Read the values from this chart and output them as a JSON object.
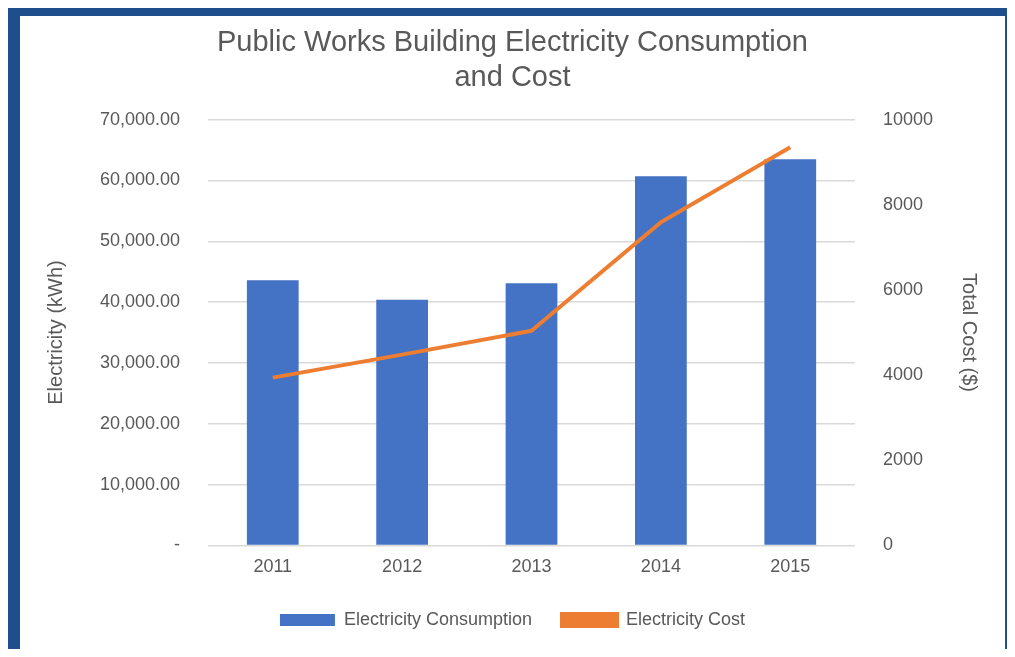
{
  "chart_data": {
    "type": "bar",
    "title": [
      "Public Works Building Electricity Consumption",
      "and Cost"
    ],
    "categories": [
      "2011",
      "2012",
      "2013",
      "2014",
      "2015"
    ],
    "series": [
      {
        "name": "Electricity Consumption",
        "color": "#4472c4",
        "values": [
          43600,
          40400,
          43100,
          60700,
          63500
        ]
      },
      {
        "name": "Electricity Cost",
        "type": "line",
        "axis": "y2",
        "color": "#ed7d31",
        "values": [
          3940,
          4480,
          5040,
          7590,
          9350
        ]
      }
    ],
    "ylabel": "Electricity (kWh)",
    "y2label": "Total Cost ($)",
    "ylim": [
      0,
      70000
    ],
    "yticks": [
      {
        "value": 0,
        "label": "-"
      },
      {
        "value": 10000,
        "label": "10,000.00"
      },
      {
        "value": 20000,
        "label": "20,000.00"
      },
      {
        "value": 30000,
        "label": "30,000.00"
      },
      {
        "value": 40000,
        "label": "40,000.00"
      },
      {
        "value": 50000,
        "label": "50,000.00"
      },
      {
        "value": 60000,
        "label": "60,000.00"
      },
      {
        "value": 70000,
        "label": "70,000.00"
      }
    ],
    "y2lim": [
      0,
      10000
    ],
    "y2ticks": [
      0,
      2000,
      4000,
      6000,
      8000,
      10000
    ],
    "grid": "y",
    "legend": "bottom",
    "marker": "none"
  }
}
